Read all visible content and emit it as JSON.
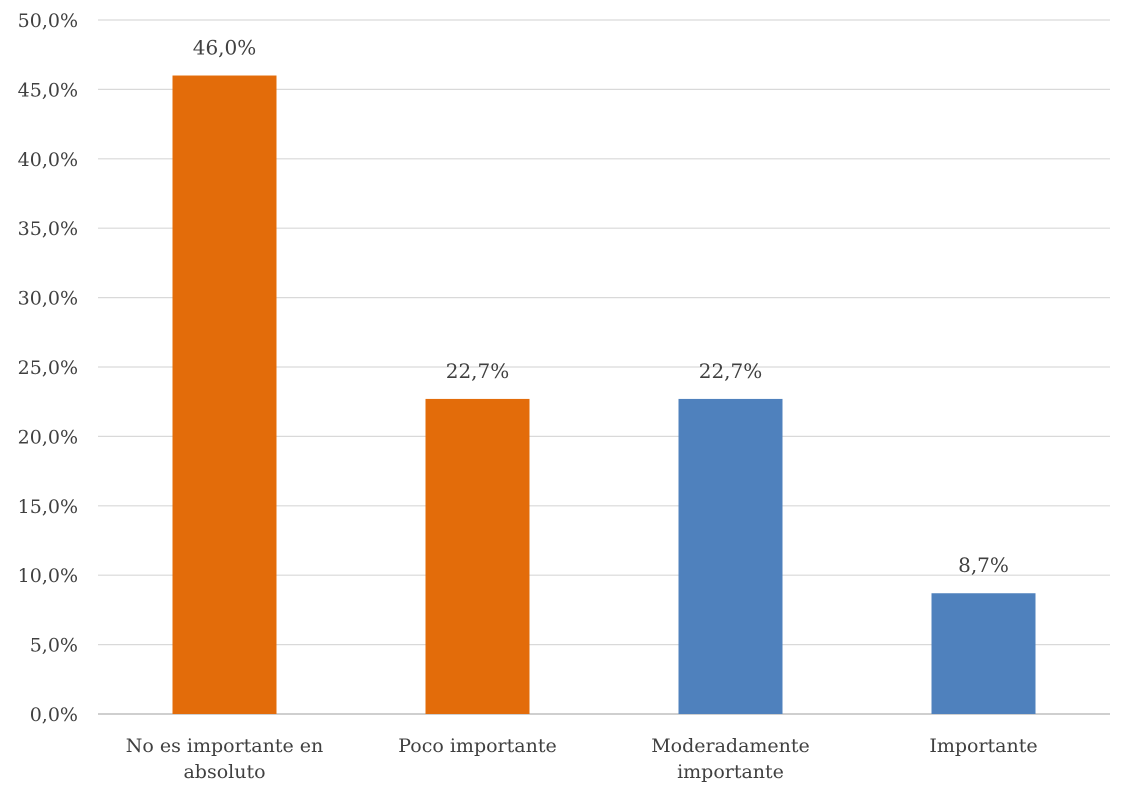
{
  "chart_data": {
    "type": "bar",
    "categories": [
      [
        "No es importante en",
        "absoluto"
      ],
      [
        "Poco importante"
      ],
      [
        "Moderadamente",
        "importante"
      ],
      [
        "Importante"
      ]
    ],
    "values": [
      46.0,
      22.7,
      22.7,
      8.7
    ],
    "data_labels": [
      "46,0%",
      "22,7%",
      "22,7%",
      "8,7%"
    ],
    "bar_colors": [
      "#e36c0a",
      "#e36c0a",
      "#4f81bd",
      "#4f81bd"
    ],
    "ylim": [
      0,
      50
    ],
    "yticks": [
      0,
      5,
      10,
      15,
      20,
      25,
      30,
      35,
      40,
      45,
      50
    ],
    "ytick_labels": [
      "0,0%",
      "5,0%",
      "10,0%",
      "15,0%",
      "20,0%",
      "25,0%",
      "30,0%",
      "35,0%",
      "40,0%",
      "45,0%",
      "50,0%"
    ],
    "grid": true,
    "legend": "none",
    "title": "",
    "xlabel": "",
    "ylabel": ""
  }
}
